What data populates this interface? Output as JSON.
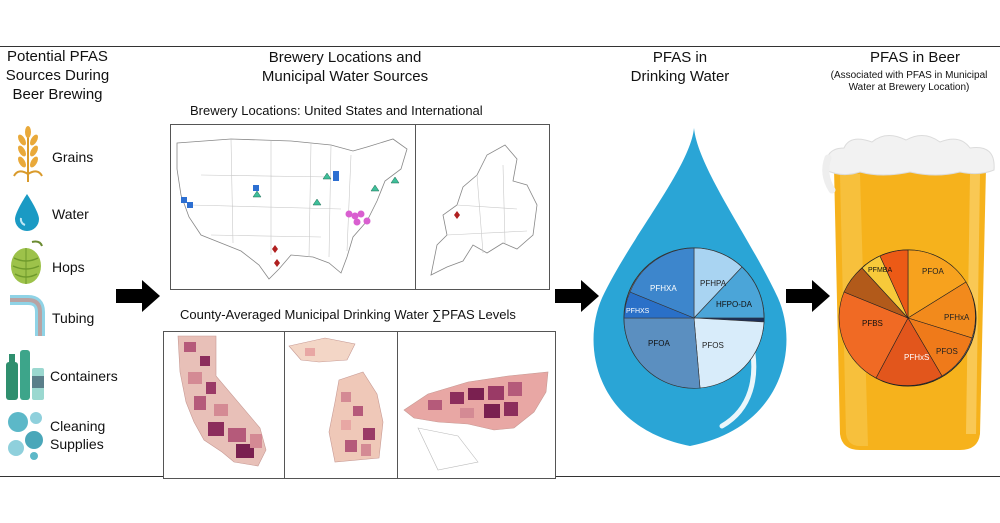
{
  "sections": {
    "sources": {
      "title_lines": [
        "Potential PFAS",
        "Sources During",
        "Beer Brewing"
      ]
    },
    "locations": {
      "title_lines": [
        "Brewery Locations and",
        "Municipal Water Sources"
      ]
    },
    "drinking_water": {
      "title_lines": [
        "PFAS in",
        "Drinking Water"
      ]
    },
    "beer": {
      "title": "PFAS in Beer",
      "subtitle_lines": [
        "(Associated with PFAS in Municipal",
        "Water at Brewery Location)"
      ]
    }
  },
  "sources_list": [
    {
      "label": "Grains",
      "icon": "wheat-icon"
    },
    {
      "label": "Water",
      "icon": "water-drop-icon"
    },
    {
      "label": "Hops",
      "icon": "hops-icon"
    },
    {
      "label": "Tubing",
      "icon": "tubing-icon"
    },
    {
      "label": "Containers",
      "icon": "containers-icon"
    },
    {
      "label": "Cleaning Supplies",
      "label_lines": [
        "Cleaning",
        "Supplies"
      ],
      "icon": "bubbles-icon"
    }
  ],
  "maps": {
    "brewery_title": "Brewery Locations: United States and International",
    "county_title": "County-Averaged Municipal Drinking Water ∑PFAS Levels"
  },
  "water_pie": {
    "labels": [
      "PFHPA",
      "HFPO-DA",
      "PFOS",
      "PFOA",
      "PFHXS",
      "PFHXA"
    ]
  },
  "beer_pie": {
    "labels": [
      "PFOA",
      "PFHxA",
      "PFOS",
      "PFHxS",
      "PFBS",
      "PFMBA"
    ]
  },
  "colors": {
    "water_drop": "#2aa5d6",
    "beer": "#f6b21c",
    "foam": "#f2f2f2",
    "arrow": "#000000"
  }
}
